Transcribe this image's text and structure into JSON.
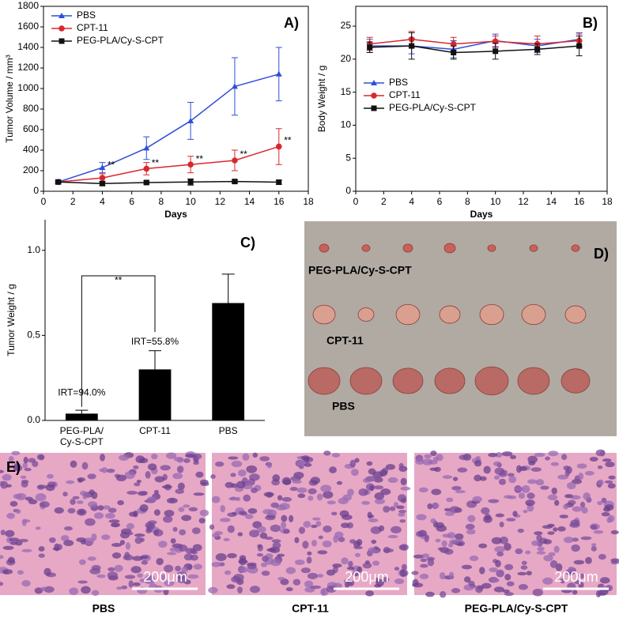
{
  "chart_data": [
    {
      "type": "line",
      "label": "A)",
      "xlabel": "Days",
      "ylabel": "Tumor Volume / mm³",
      "x": [
        1,
        4,
        7,
        10,
        13,
        16
      ],
      "xlim": [
        0,
        18
      ],
      "xticks": [
        0,
        2,
        4,
        6,
        8,
        10,
        12,
        14,
        16,
        18
      ],
      "ylim": [
        0,
        1800
      ],
      "yticks": [
        0,
        200,
        400,
        600,
        800,
        1000,
        1200,
        1400,
        1600,
        1800
      ],
      "legend": "upper left",
      "series": [
        {
          "name": "PBS",
          "color": "#2f4fd8",
          "marker": "triangle",
          "values": [
            90,
            230,
            420,
            685,
            1020,
            1140
          ],
          "errors": [
            20,
            50,
            110,
            180,
            280,
            260
          ]
        },
        {
          "name": "CPT-11",
          "color": "#d8282f",
          "marker": "circle",
          "values": [
            90,
            130,
            220,
            260,
            300,
            435
          ],
          "errors": [
            10,
            40,
            60,
            80,
            100,
            175
          ]
        },
        {
          "name": "PEG-PLA/Cy-S-CPT",
          "color": "#111111",
          "marker": "square",
          "values": [
            90,
            75,
            85,
            90,
            95,
            88
          ],
          "errors": [
            10,
            20,
            15,
            30,
            15,
            20
          ]
        }
      ],
      "annotations": [
        {
          "text": "**",
          "x": 4.6,
          "y": 250
        },
        {
          "text": "**",
          "x": 7.6,
          "y": 270
        },
        {
          "text": "**",
          "x": 10.6,
          "y": 310
        },
        {
          "text": "**",
          "x": 13.6,
          "y": 355
        },
        {
          "text": "**",
          "x": 16.6,
          "y": 490
        }
      ]
    },
    {
      "type": "line",
      "label": "B)",
      "xlabel": "Days",
      "ylabel": "Body Weight / g",
      "x": [
        1,
        4,
        7,
        10,
        13,
        16
      ],
      "xlim": [
        0,
        18
      ],
      "xticks": [
        0,
        2,
        4,
        6,
        8,
        10,
        12,
        14,
        16,
        18
      ],
      "ylim": [
        0,
        28
      ],
      "yticks": [
        0,
        5,
        10,
        15,
        20,
        25
      ],
      "legend": "center left",
      "series": [
        {
          "name": "PBS",
          "color": "#2f4fd8",
          "marker": "triangle",
          "values": [
            22,
            22,
            21.5,
            22.8,
            22,
            23
          ],
          "errors": [
            1,
            1.2,
            1.3,
            1,
            1,
            1
          ]
        },
        {
          "name": "CPT-11",
          "color": "#d8282f",
          "marker": "circle",
          "values": [
            22.3,
            23,
            22.3,
            22.7,
            22.3,
            22.8
          ],
          "errors": [
            1,
            1.2,
            1,
            0.8,
            1.2,
            1
          ]
        },
        {
          "name": "PEG-PLA/Cy-S-CPT",
          "color": "#111111",
          "marker": "square",
          "values": [
            21.8,
            22,
            21,
            21.2,
            21.5,
            22
          ],
          "errors": [
            0.8,
            2,
            1,
            1.2,
            0.8,
            1.5
          ]
        }
      ]
    },
    {
      "type": "bar",
      "label": "C)",
      "ylabel": "Tumor Weight / g",
      "categories": [
        "PEG-PLA/\nCy-S-CPT",
        "CPT-11",
        "PBS"
      ],
      "values": [
        0.04,
        0.3,
        0.69
      ],
      "errors": [
        0.02,
        0.11,
        0.17
      ],
      "color": "#000000",
      "ylim": [
        0,
        1.18
      ],
      "yticks": [
        {
          "value": 0,
          "label": "0.0"
        },
        {
          "value": 0.5,
          "label": "0.5"
        },
        {
          "value": 1,
          "label": "1.0"
        }
      ],
      "annotations": [
        {
          "text": "IRT=94.0%",
          "x": 0,
          "y": 0.16
        },
        {
          "text": "IRT=55.8%",
          "x": 1,
          "y": 0.46
        },
        {
          "text": "**",
          "x": 0.5,
          "y": 0.82
        }
      ]
    }
  ],
  "photo": {
    "label": "D)",
    "rows": [
      "PEG-PLA/Cy-S-CPT",
      "CPT-11",
      "PBS"
    ]
  },
  "histology": {
    "label": "E)",
    "panels": [
      {
        "caption": "PBS",
        "scale": "200μm"
      },
      {
        "caption": "CPT-11",
        "scale": "200μm"
      },
      {
        "caption": "PEG-PLA/Cy-S-CPT",
        "scale": "200μm"
      }
    ]
  }
}
